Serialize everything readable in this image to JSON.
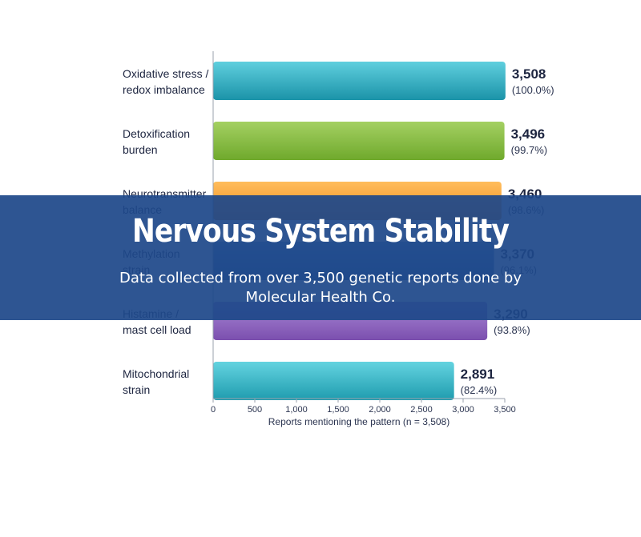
{
  "banner": {
    "title": "Nervous System Stability",
    "subtitle": "Data collected from over 3,500 genetic reports done by Molecular Health Co."
  },
  "chart_data": {
    "type": "bar",
    "orientation": "horizontal",
    "title": "",
    "xlabel": "Reports mentioning the pattern (n = 3,508)",
    "ylabel": "",
    "xlim": [
      0,
      3500
    ],
    "xticks": [
      "0",
      "500",
      "1,000",
      "1,500",
      "2,000",
      "2,500",
      "3,000",
      "3,500"
    ],
    "grid": false,
    "categories": [
      [
        "Oxidative stress /",
        "redox imbalance"
      ],
      [
        "Detoxification",
        "burden"
      ],
      [
        "Neurotransmitter",
        "balance"
      ],
      [
        "Methylation",
        "strain"
      ],
      [
        "Histamine /",
        "mast cell load"
      ],
      [
        "Mitochondrial",
        "strain"
      ]
    ],
    "values": [
      3508,
      3496,
      3460,
      3370,
      3290,
      2891
    ],
    "value_labels": [
      "3,508",
      "3,496",
      "3,460",
      "3,370",
      "3,290",
      "2,891"
    ],
    "percent_labels": [
      "(100.0%)",
      "(99.7%)",
      "(98.6%)",
      "(96.1%)",
      "(93.8%)",
      "(82.4%)"
    ],
    "colors": [
      "#1b93a8",
      "#6fa92c",
      "#f08a1c",
      "#2f5f9e",
      "#7b4fae",
      "#1f9cae"
    ],
    "highlight_colors": [
      "#5fcfde",
      "#a4d062",
      "#ffbd5c",
      "#6f9bd6",
      "#a988d6",
      "#63d3e0"
    ]
  }
}
